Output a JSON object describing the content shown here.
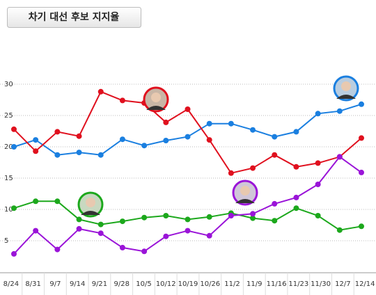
{
  "chart_data": {
    "type": "line",
    "title": "차기 대선 후보 지지율",
    "categories": [
      "8/24",
      "8/31",
      "9/7",
      "9/14",
      "9/21",
      "9/28",
      "10/5",
      "10/12",
      "10/19",
      "10/26",
      "11/2",
      "11/9",
      "11/16",
      "11/23",
      "11/30",
      "12/7",
      "12/14"
    ],
    "series": [
      {
        "color": "#1a7fe0",
        "values": [
          20.0,
          21.1,
          18.7,
          19.1,
          18.7,
          21.2,
          20.2,
          21.0,
          21.6,
          23.7,
          23.7,
          22.7,
          21.6,
          22.4,
          25.3,
          25.7,
          26.8
        ]
      },
      {
        "color": "#e0101e",
        "values": [
          22.8,
          19.3,
          22.4,
          21.7,
          28.8,
          27.4,
          27.0,
          23.9,
          26.0,
          21.1,
          15.8,
          16.6,
          18.7,
          16.8,
          17.4,
          18.4,
          21.4
        ]
      },
      {
        "color": "#1ca81c",
        "values": [
          10.2,
          11.3,
          11.3,
          8.4,
          7.6,
          8.1,
          8.7,
          9.0,
          8.4,
          8.8,
          9.4,
          8.6,
          8.2,
          10.2,
          9.0,
          6.7,
          7.3
        ]
      },
      {
        "color": "#9a14d8",
        "values": [
          2.9,
          6.6,
          3.6,
          6.9,
          6.2,
          3.9,
          3.3,
          5.7,
          6.6,
          5.8,
          9.0,
          9.3,
          10.9,
          11.9,
          14.0,
          18.4,
          15.9
        ]
      }
    ],
    "ylim": [
      0,
      33
    ],
    "yticks": [
      5,
      10,
      15,
      20,
      25,
      30
    ],
    "grid": true
  }
}
